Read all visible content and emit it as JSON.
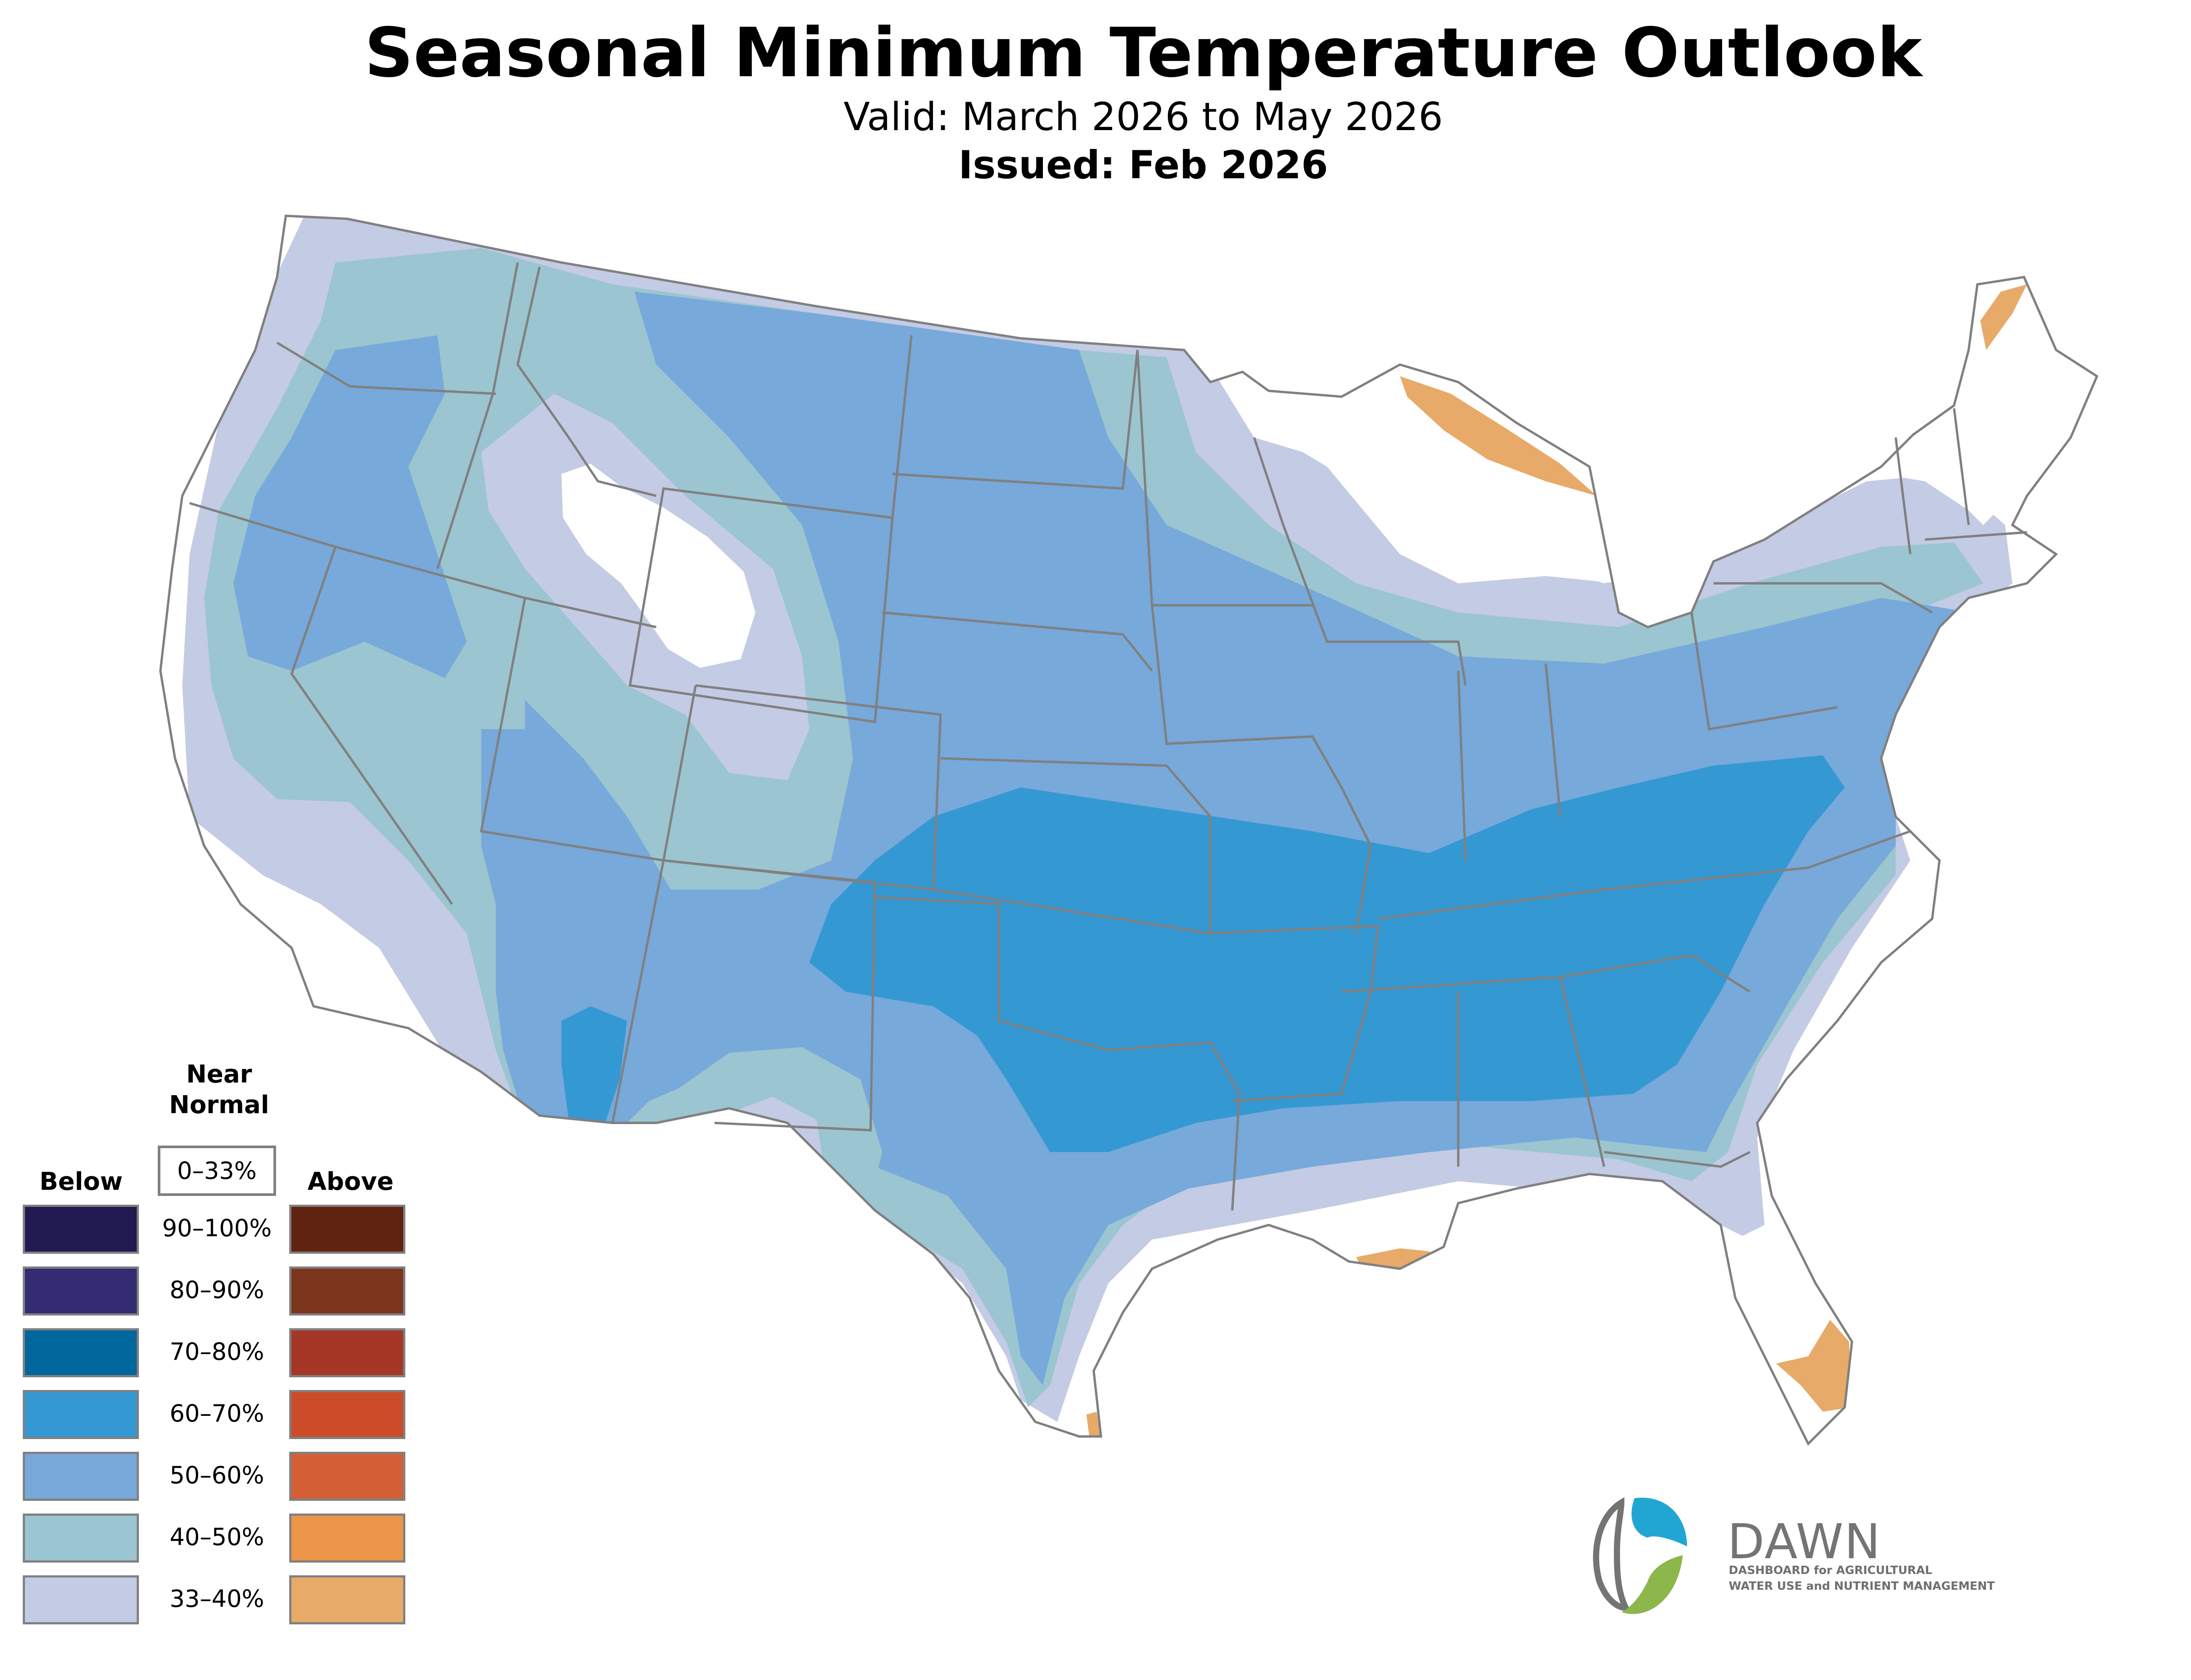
{
  "header": {
    "title": "Seasonal Minimum Temperature Outlook",
    "valid": "Valid: March 2026 to May 2026",
    "issued": "Issued: Feb 2026"
  },
  "legend": {
    "below_label": "Below",
    "above_label": "Above",
    "near_normal_line1": "Near",
    "near_normal_line2": "Normal",
    "near_normal_range": "0–33%",
    "rows": [
      {
        "range": "90–100%",
        "below_color": "#201a50",
        "above_color": "#612311"
      },
      {
        "range": "80–90%",
        "below_color": "#332c73",
        "above_color": "#7c351d"
      },
      {
        "range": "70–80%",
        "below_color": "#00679d",
        "above_color": "#a63626"
      },
      {
        "range": "60–70%",
        "below_color": "#3498d3",
        "above_color": "#cc4b28"
      },
      {
        "range": "50–60%",
        "below_color": "#77a9da",
        "above_color": "#d45f35"
      },
      {
        "range": "40–50%",
        "below_color": "#9bc5d0",
        "above_color": "#eb9548"
      },
      {
        "range": "33–40%",
        "below_color": "#c4cbe4",
        "above_color": "#e7aa69"
      }
    ]
  },
  "map": {
    "colors": {
      "below_33_40": "#c4cbe4",
      "below_40_50": "#9bc5d0",
      "below_50_60": "#77a9da",
      "below_60_70": "#3498d3",
      "above_33_40": "#e7aa69",
      "border": "#808080"
    }
  },
  "logo": {
    "name": "DAWN",
    "line1": "DASHBOARD for AGRICULTURAL",
    "line2": "WATER USE and NUTRIENT MANAGEMENT",
    "colors": {
      "blue": "#21a6d3",
      "green": "#8db64b",
      "gray": "#747474"
    }
  }
}
